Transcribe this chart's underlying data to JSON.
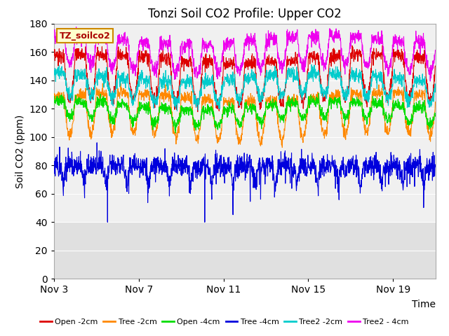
{
  "title": "Tonzi Soil CO2 Profile: Upper CO2",
  "xlabel": "Time",
  "ylabel": "Soil CO2 (ppm)",
  "ylim": [
    0,
    180
  ],
  "yticks": [
    0,
    20,
    40,
    60,
    80,
    100,
    120,
    140,
    160,
    180
  ],
  "xtick_labels": [
    "Nov 3",
    "Nov 7",
    "Nov 11",
    "Nov 15",
    "Nov 19"
  ],
  "legend_label": "TZ_soilco2",
  "series": [
    {
      "name": "Open -2cm",
      "color": "#dd0000",
      "base": 150,
      "plateau": 155,
      "dip": 125,
      "noise": 2.5,
      "period": 96
    },
    {
      "name": "Tree -2cm",
      "color": "#ff8800",
      "base": 126,
      "plateau": 128,
      "dip": 100,
      "noise": 2.0,
      "period": 96
    },
    {
      "name": "Open -4cm",
      "color": "#00dd00",
      "base": 119,
      "plateau": 122,
      "dip": 111,
      "noise": 2.0,
      "period": 96
    },
    {
      "name": "Tree -4cm",
      "color": "#0000dd",
      "base": 76,
      "plateau": 80,
      "dip": 50,
      "noise": 4.0,
      "period": 96
    },
    {
      "name": "Tree2 -2cm",
      "color": "#00cccc",
      "base": 137,
      "plateau": 142,
      "dip": 127,
      "noise": 2.5,
      "period": 96
    },
    {
      "name": "Tree2 - 4cm",
      "color": "#ee00ee",
      "base": 163,
      "plateau": 168,
      "dip": 148,
      "noise": 2.5,
      "period": 96
    }
  ],
  "n_points": 1728,
  "background_color": "#ffffff",
  "plot_bg_color": "#f0f0f0",
  "grid_color": "#ffffff",
  "title_fontsize": 12,
  "axis_fontsize": 10,
  "legend_box_color": "#ffffcc",
  "legend_box_edge": "#cc8800",
  "lower_shade_thresh": 40,
  "lower_shade_color": "#e0e0e0"
}
